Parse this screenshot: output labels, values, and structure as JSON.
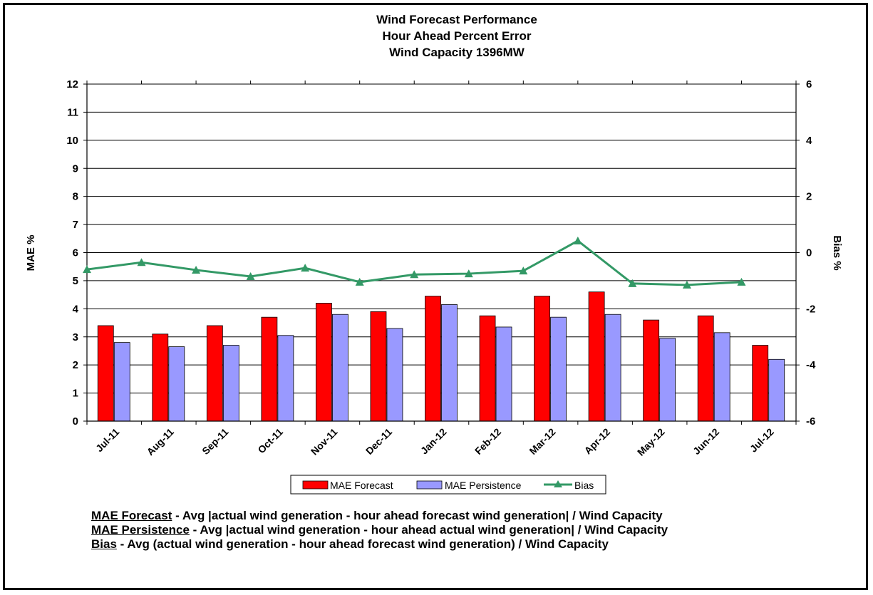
{
  "chart_data": {
    "type": "bar",
    "title": [
      "Wind Forecast Performance",
      "Hour Ahead Percent Error",
      "Wind Capacity 1396MW"
    ],
    "categories": [
      "Jul-11",
      "Aug-11",
      "Sep-11",
      "Oct-11",
      "Nov-11",
      "Dec-11",
      "Jan-12",
      "Feb-12",
      "Mar-12",
      "Apr-12",
      "May-12",
      "Jun-12",
      "Jul-12"
    ],
    "ylabel": "MAE %",
    "y2label": "Bias %",
    "ylim": [
      0,
      12
    ],
    "yticks": [
      "0",
      "1",
      "2",
      "3",
      "4",
      "5",
      "6",
      "7",
      "8",
      "9",
      "10",
      "11",
      "12"
    ],
    "y2lim": [
      -6,
      6
    ],
    "y2ticks": [
      "-6",
      "-4",
      "-2",
      "0",
      "2",
      "4",
      "6"
    ],
    "grid": true,
    "legend_position": "bottom",
    "series": [
      {
        "name": "MAE Forecast",
        "type": "bar",
        "axis": "left",
        "color": "#ff0000",
        "values": [
          3.4,
          3.1,
          3.4,
          3.7,
          4.2,
          3.9,
          4.45,
          3.75,
          4.45,
          4.6,
          3.6,
          3.75,
          2.7
        ]
      },
      {
        "name": "MAE Persistence",
        "type": "bar",
        "axis": "left",
        "color": "#9999ff",
        "values": [
          2.8,
          2.65,
          2.7,
          3.05,
          3.8,
          3.3,
          4.15,
          3.35,
          3.7,
          3.8,
          2.95,
          3.15,
          2.2
        ]
      },
      {
        "name": "Bias",
        "type": "line",
        "axis": "right",
        "color": "#339966",
        "values": [
          -0.6,
          -0.35,
          -0.62,
          -0.85,
          -0.55,
          -1.05,
          -0.78,
          -0.75,
          -0.65,
          0.42,
          -1.1,
          -1.15,
          -1.05
        ]
      }
    ]
  },
  "notes": [
    {
      "term": "MAE Forecast",
      "text": " - Avg |actual wind generation - hour ahead forecast wind generation| / Wind Capacity"
    },
    {
      "term": "MAE Persistence",
      "text": " - Avg |actual wind generation - hour ahead actual wind generation| / Wind Capacity"
    },
    {
      "term": "Bias",
      "text": " - Avg (actual wind generation - hour ahead forecast wind generation) / Wind Capacity"
    }
  ]
}
